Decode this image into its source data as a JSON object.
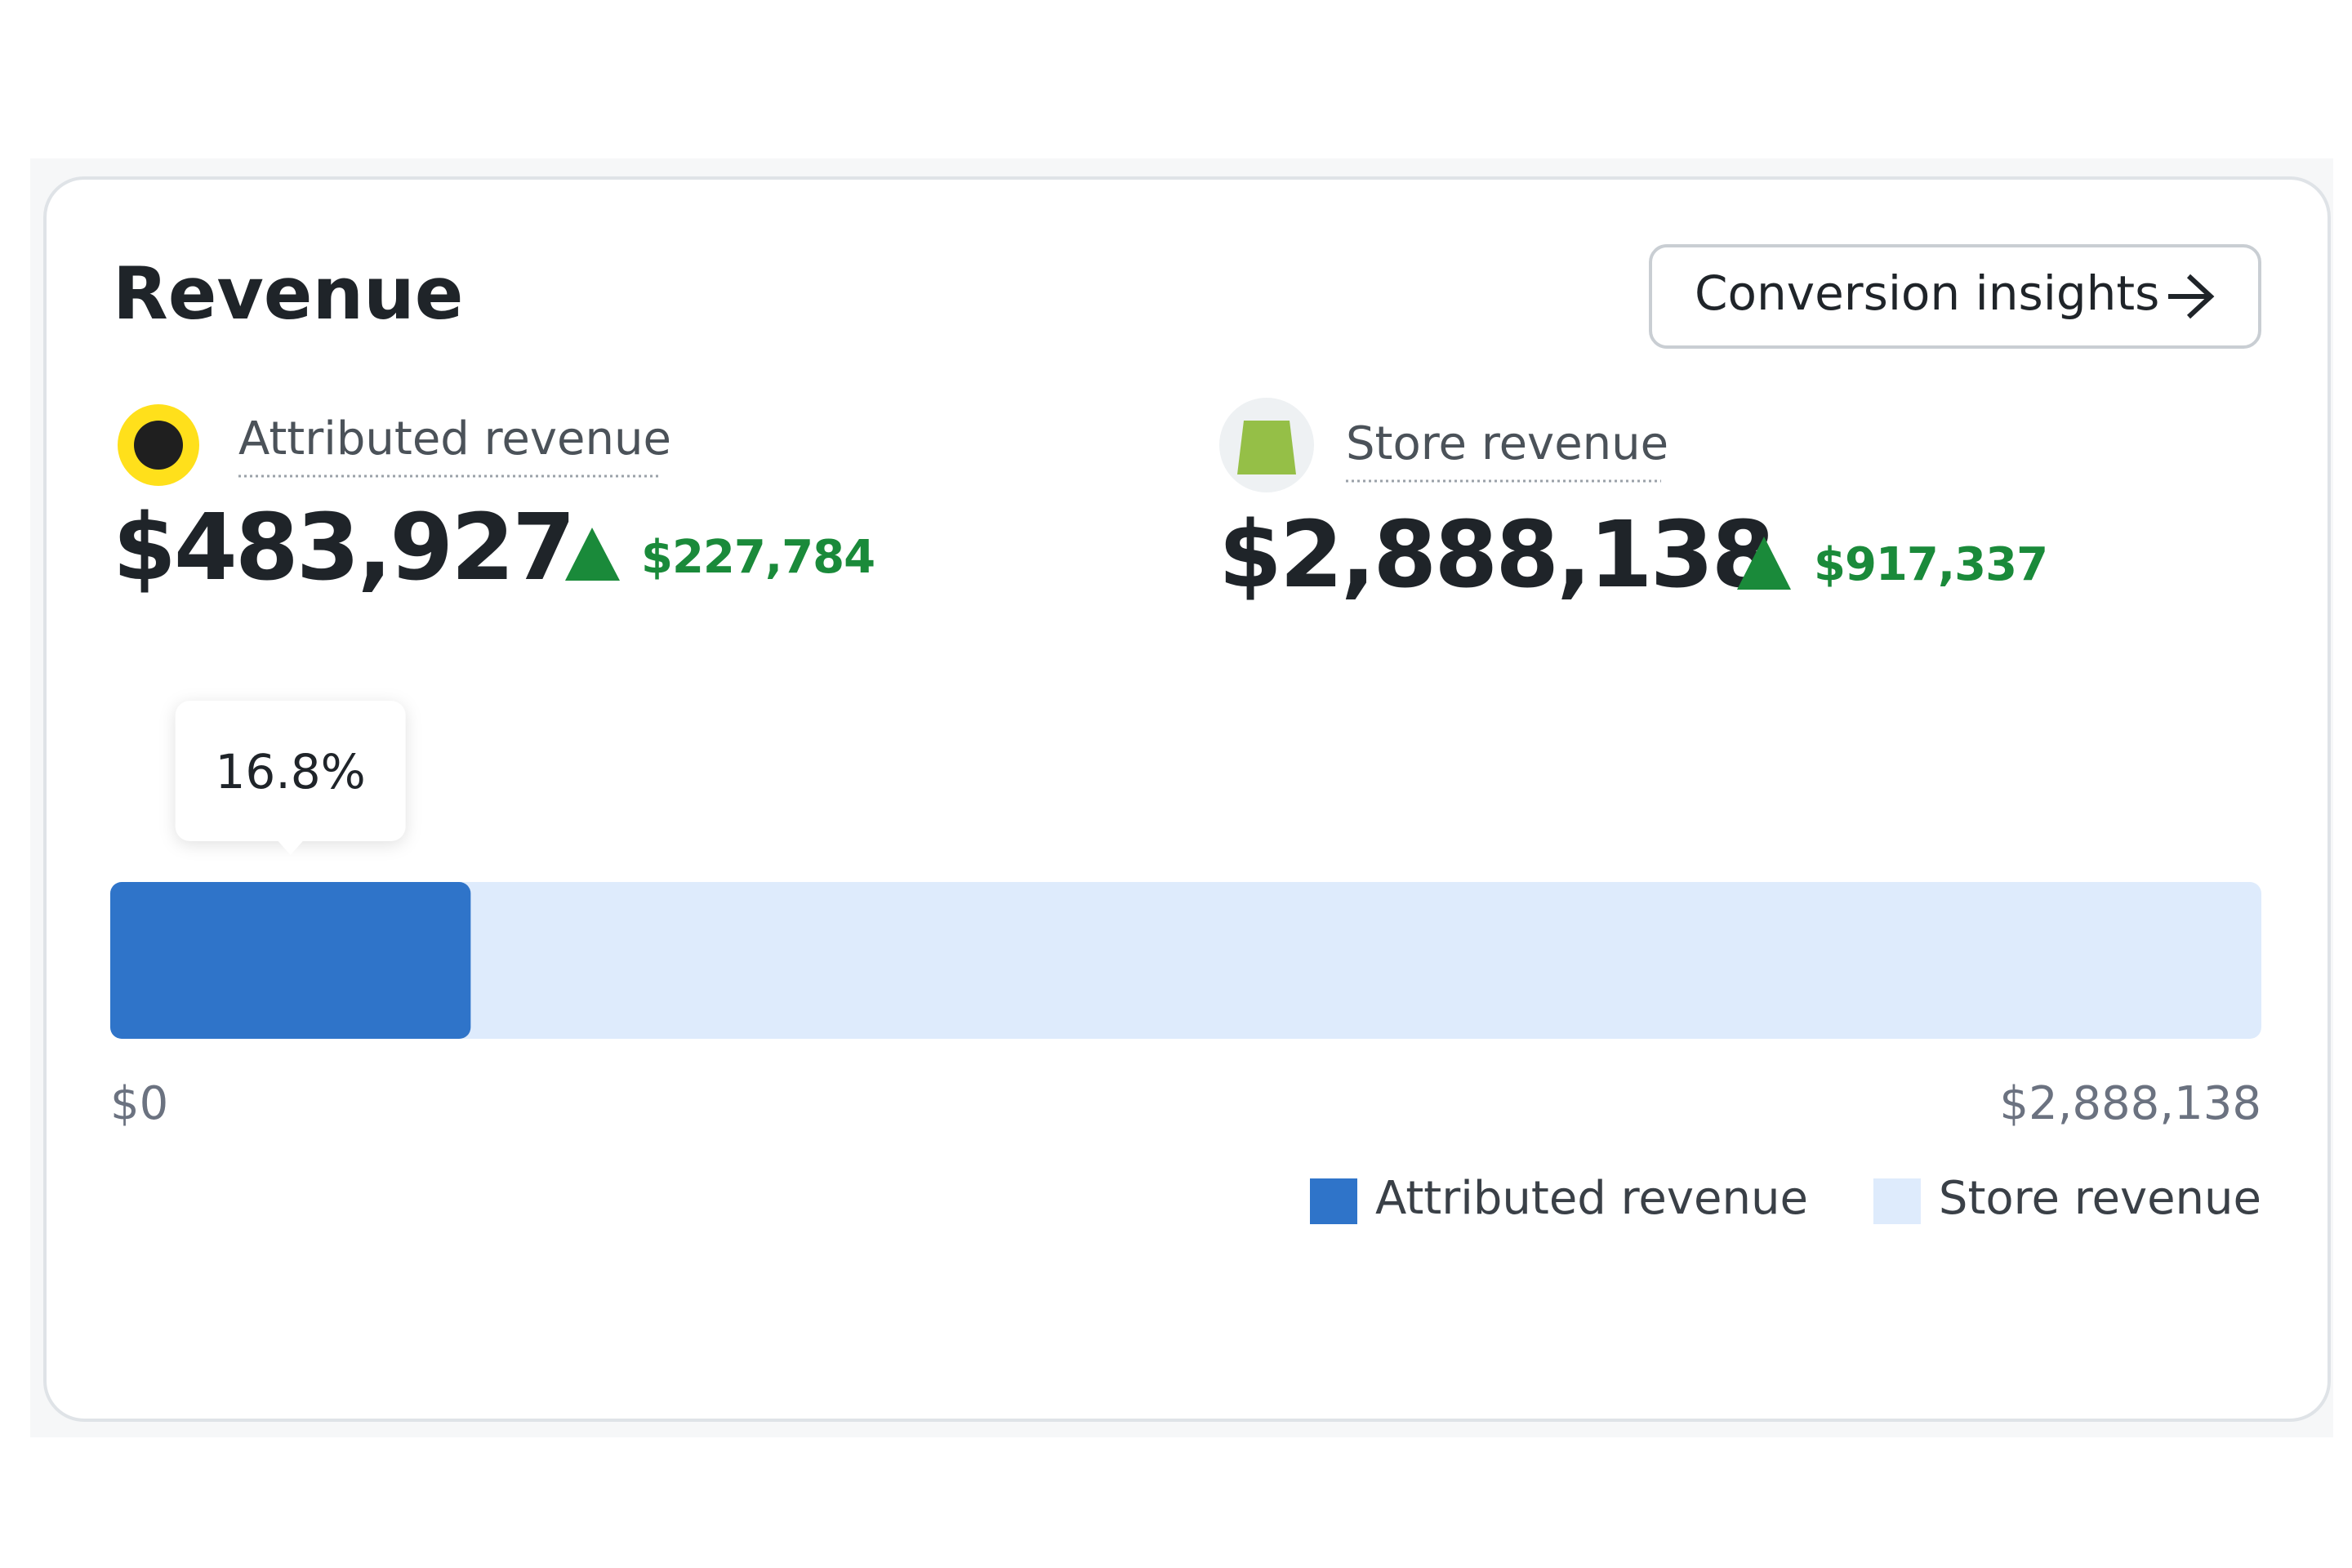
{
  "card": {
    "title": "Revenue",
    "button": "Conversion insights",
    "metrics": [
      {
        "label": "Attributed revenue",
        "value": "$483,927",
        "change": "$227,784"
      },
      {
        "label": "Store revenue",
        "value": "$2,888,138",
        "change": "$917,337"
      }
    ]
  },
  "chart_data": {
    "type": "bar",
    "orientation": "horizontal",
    "annotation": "16.8%",
    "series": [
      {
        "name": "Attributed revenue",
        "color": "#2f74c9",
        "values": [
          483927
        ]
      },
      {
        "name": "Store revenue",
        "color": "#deebfc",
        "values": [
          2888138
        ]
      }
    ],
    "xlim": [
      0,
      2888138
    ],
    "xticks": [
      {
        "value": 0,
        "label": "$0"
      },
      {
        "value": 2888138,
        "label": "$2,888,138"
      }
    ]
  }
}
